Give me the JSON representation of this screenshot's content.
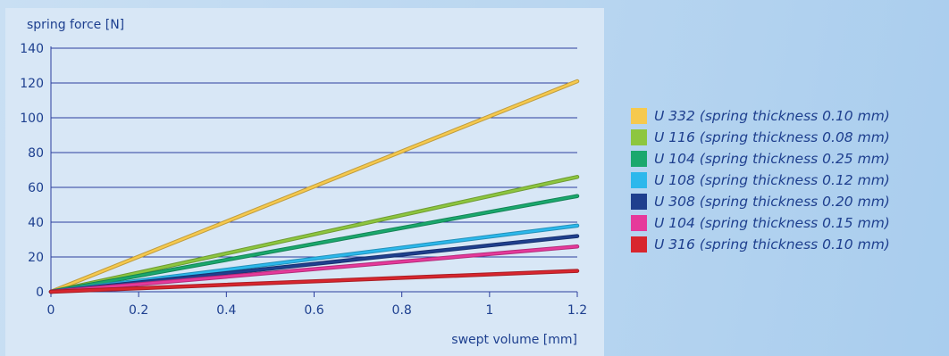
{
  "chart_data": {
    "type": "line",
    "xlabel": "swept volume [mm]",
    "ylabel": "spring force [N]",
    "xlim": [
      0,
      1.2
    ],
    "ylim": [
      0,
      140
    ],
    "x_ticks": [
      "0",
      "0.2",
      "0.4",
      "0.6",
      "0.8",
      "1",
      "1.2"
    ],
    "y_ticks": [
      "0",
      "20",
      "40",
      "60",
      "80",
      "100",
      "120",
      "140"
    ],
    "grid": "horizontal",
    "legend_position": "right",
    "series": [
      {
        "name": "U 332 (spring thickness 0.10 mm)",
        "color": "#f6c94e",
        "x": [
          0,
          1.2
        ],
        "y": [
          0,
          121
        ]
      },
      {
        "name": "U 116 (spring thickness 0.08 mm)",
        "color": "#8dc63f",
        "x": [
          0,
          1.2
        ],
        "y": [
          0,
          66
        ]
      },
      {
        "name": "U 104 (spring thickness 0.25 mm)",
        "color": "#1aa86d",
        "x": [
          0,
          1.2
        ],
        "y": [
          0,
          55
        ]
      },
      {
        "name": "U 108 (spring thickness 0.12 mm)",
        "color": "#2cb8ec",
        "x": [
          0,
          1.2
        ],
        "y": [
          0,
          38
        ]
      },
      {
        "name": "U 308 (spring thickness 0.20 mm)",
        "color": "#1f3f8e",
        "x": [
          0,
          1.2
        ],
        "y": [
          0,
          32
        ]
      },
      {
        "name": "U 104 (spring thickness 0.15 mm)",
        "color": "#e6399b",
        "x": [
          0,
          1.2
        ],
        "y": [
          0,
          26
        ]
      },
      {
        "name": "U 316 (spring thickness 0.10 mm)",
        "color": "#d8262e",
        "x": [
          0,
          1.2
        ],
        "y": [
          0,
          12
        ]
      }
    ]
  }
}
